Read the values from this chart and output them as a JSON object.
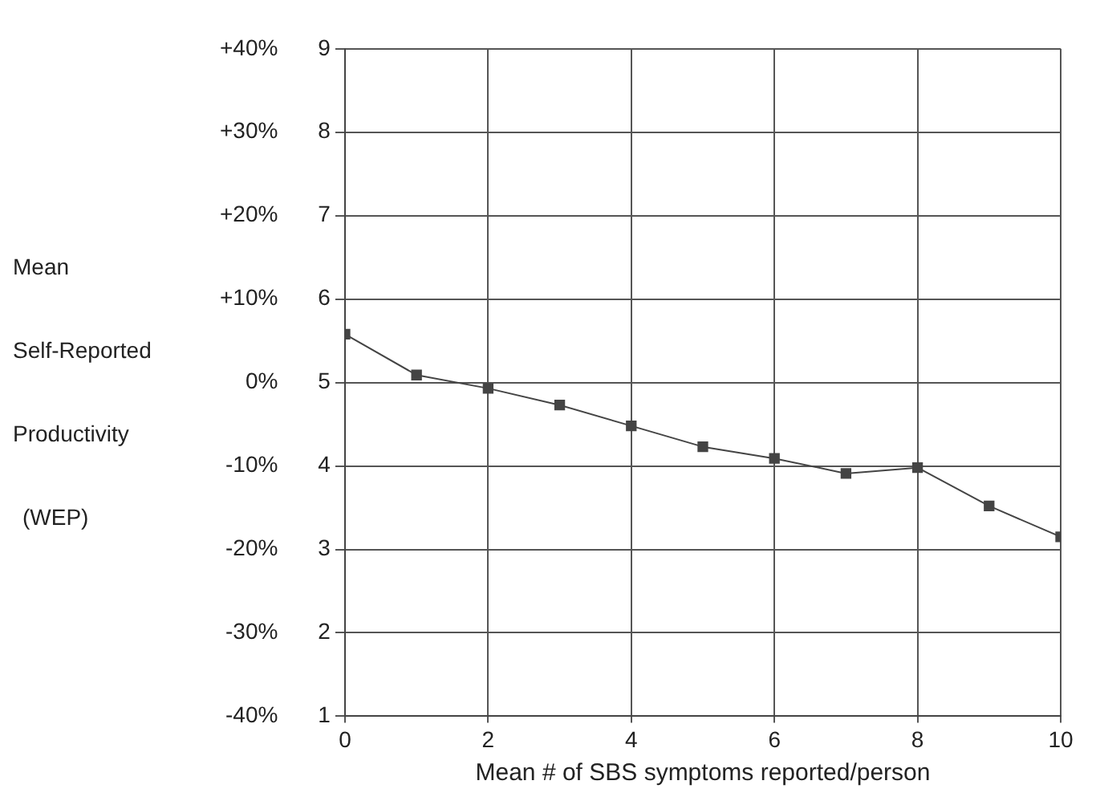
{
  "chart_data": {
    "type": "line",
    "xlabel": "Mean # of SBS symptoms reported/person",
    "ylabel": "Mean Self-Reported Productivity (WEP)",
    "x": [
      0,
      1,
      2,
      3,
      4,
      5,
      6,
      7,
      8,
      9,
      10
    ],
    "series": [
      {
        "color": "#444444",
        "values": [
          5.58,
          5.09,
          4.93,
          4.73,
          4.48,
          4.23,
          4.09,
          3.91,
          3.98,
          3.52,
          3.15
        ]
      }
    ],
    "xlim": [
      0,
      10
    ],
    "xticks": [
      0,
      2,
      4,
      6,
      8,
      10
    ],
    "ylim": [
      1,
      9
    ],
    "yticks": [
      1,
      2,
      3,
      4,
      5,
      6,
      7,
      8,
      9
    ],
    "y2lim": [
      -40,
      40
    ],
    "y2ticks": [
      {
        "value": -40,
        "label": "-40%"
      },
      {
        "value": -30,
        "label": "-30%"
      },
      {
        "value": -20,
        "label": "-20%"
      },
      {
        "value": -10,
        "label": "-10%"
      },
      {
        "value": 0,
        "label": "0%"
      },
      {
        "value": 10,
        "label": "+10%"
      },
      {
        "value": 20,
        "label": "+20%"
      },
      {
        "value": 30,
        "label": "+30%"
      },
      {
        "value": 40,
        "label": "+40%"
      }
    ],
    "grid": true,
    "marker": "square",
    "line_style": "solid",
    "legend": false
  }
}
